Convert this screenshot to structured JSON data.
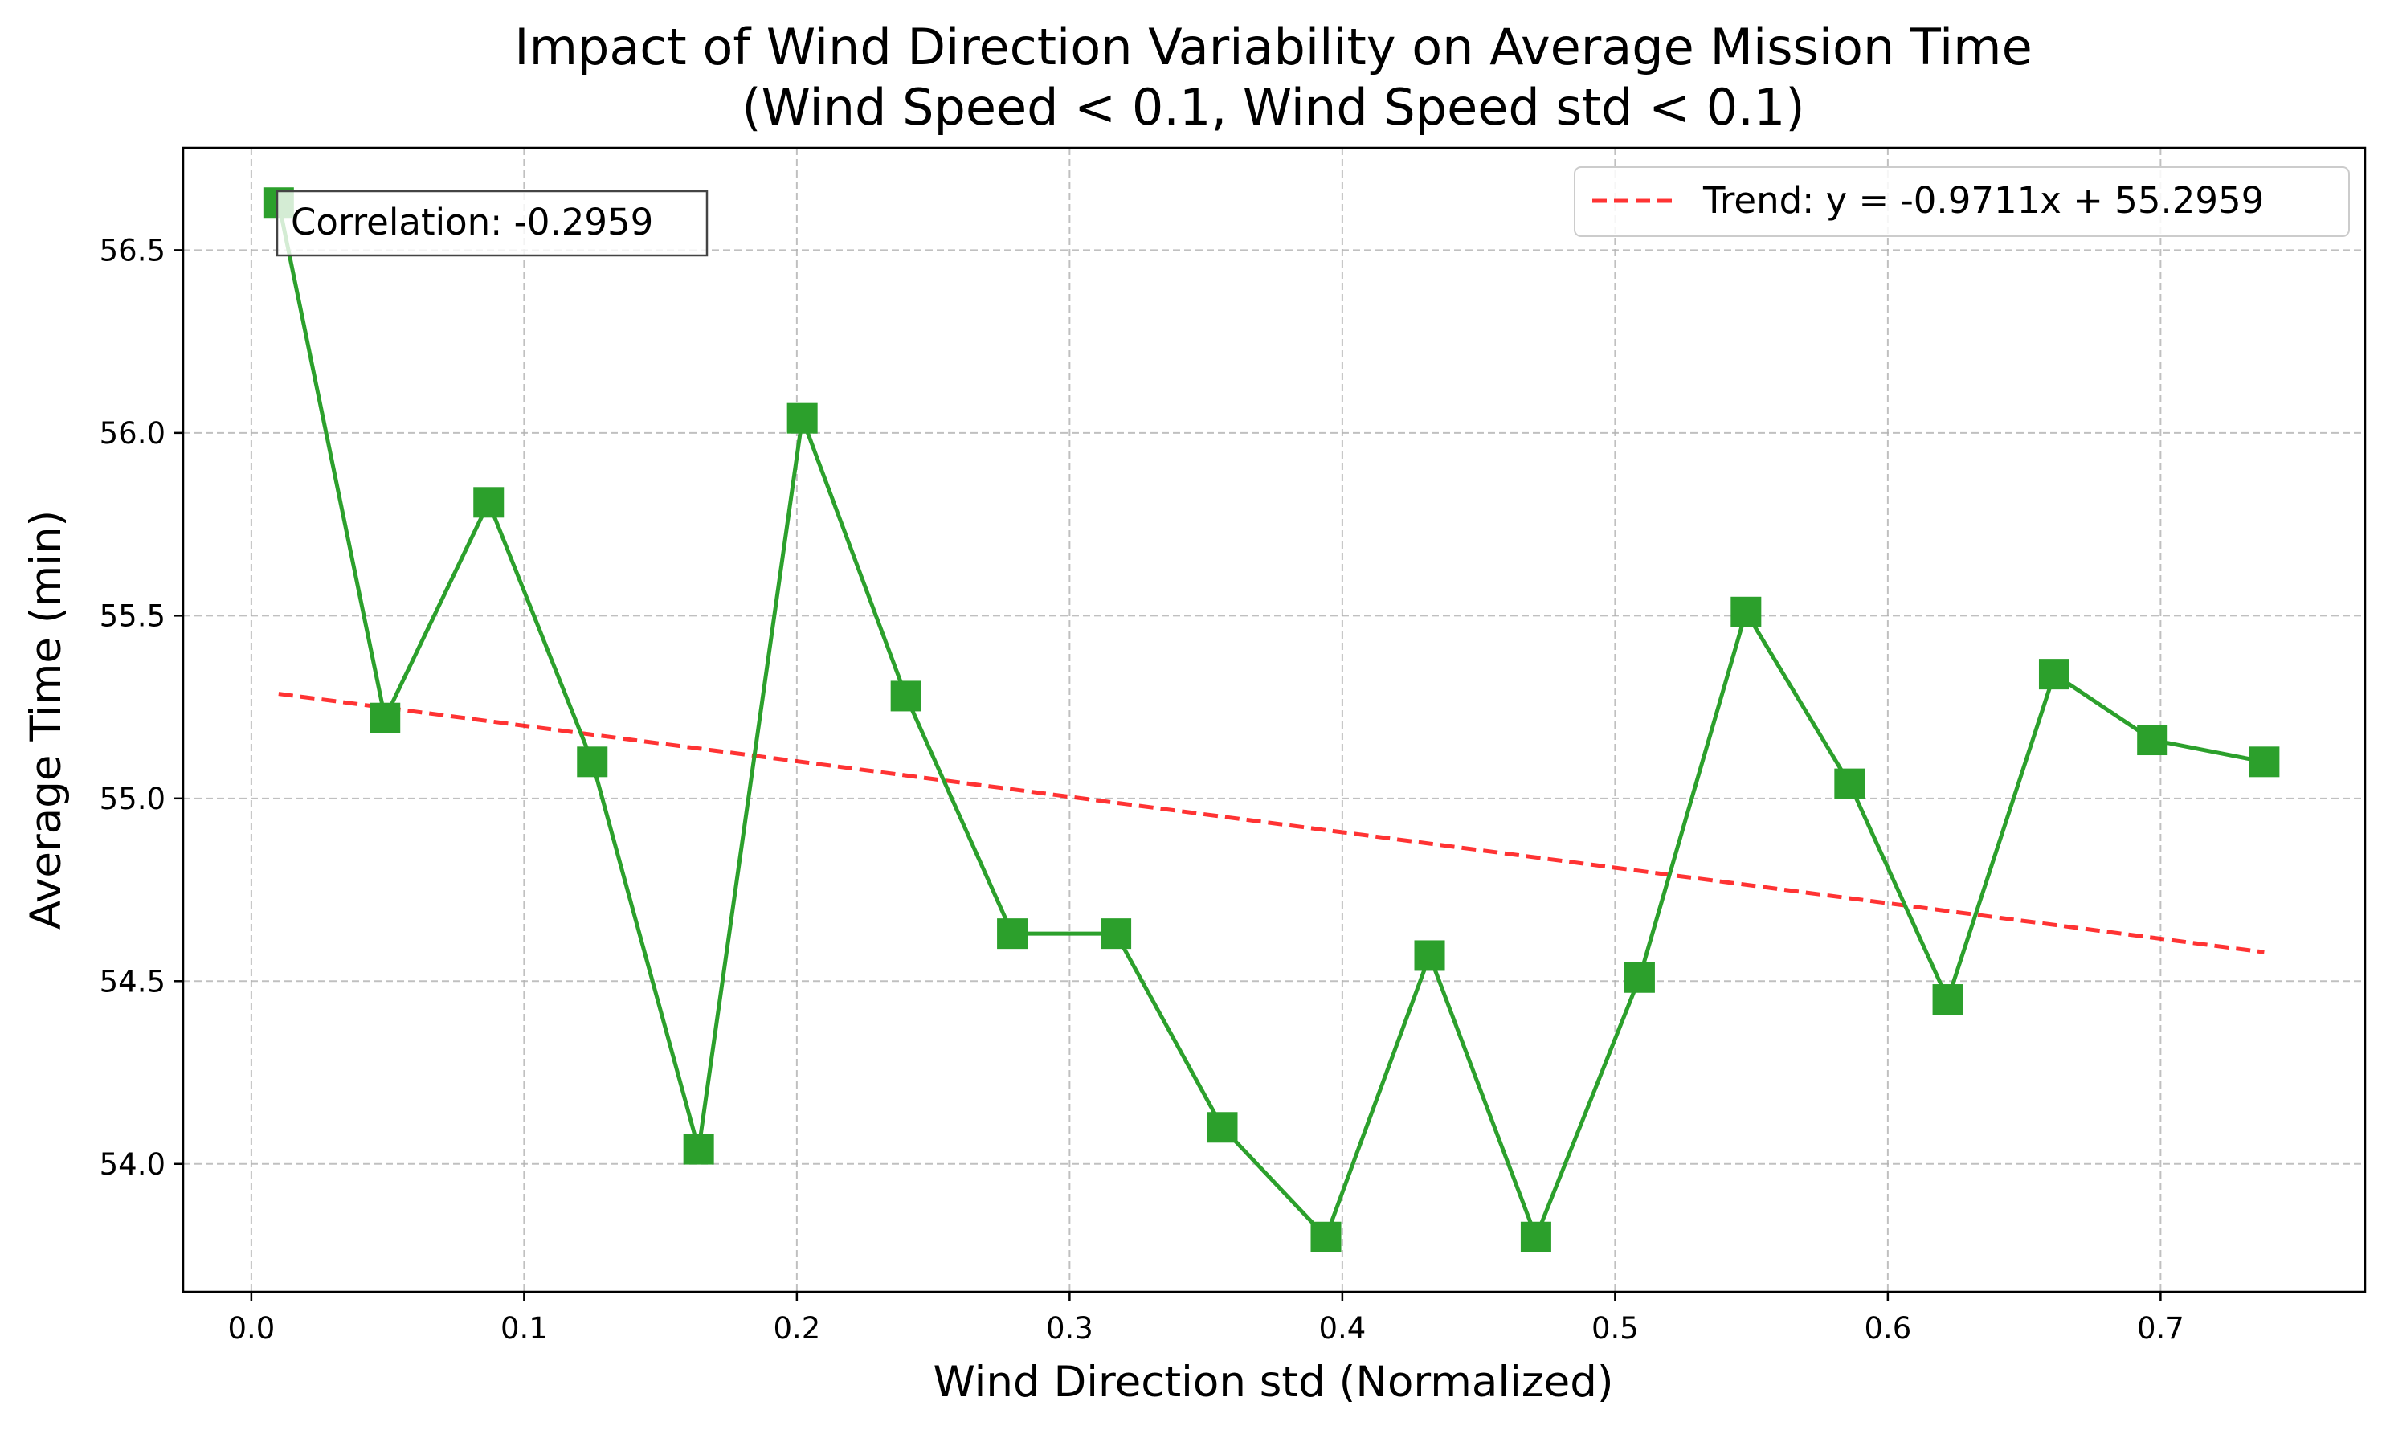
{
  "chart_data": {
    "type": "line",
    "title": "Impact of Wind Direction Variability on Average Mission Time",
    "subtitle": "(Wind Speed < 0.1, Wind Speed std < 0.1)",
    "xlabel": "Wind Direction std (Normalized)",
    "ylabel": "Average Time (min)",
    "xlim": [
      -0.025,
      0.775
    ],
    "ylim": [
      53.65,
      56.78
    ],
    "xticks": [
      "0.0",
      "0.1",
      "0.2",
      "0.3",
      "0.4",
      "0.5",
      "0.6",
      "0.7"
    ],
    "yticks": [
      "54.0",
      "54.5",
      "55.0",
      "55.5",
      "56.0",
      "56.5"
    ],
    "grid": true,
    "legend_position": "top-right",
    "series": [
      {
        "color": "#2ca02c",
        "marker": "square",
        "x": [
          0.01,
          0.049,
          0.087,
          0.125,
          0.164,
          0.202,
          0.24,
          0.279,
          0.317,
          0.356,
          0.394,
          0.432,
          0.471,
          0.509,
          0.548,
          0.586,
          0.622,
          0.661,
          0.697,
          0.738
        ],
        "y": [
          56.63,
          55.22,
          55.81,
          55.1,
          54.04,
          56.04,
          55.28,
          54.63,
          54.63,
          54.1,
          53.8,
          54.57,
          53.8,
          54.51,
          55.51,
          55.04,
          54.45,
          55.34,
          55.16,
          55.1
        ]
      }
    ],
    "trend": {
      "label": "Trend: y = -0.9711x + 55.2959",
      "color": "#ff0000",
      "slope": -0.9711,
      "intercept": 55.2959,
      "x_range": [
        0.01,
        0.738
      ]
    },
    "annotation": "Correlation: -0.2959"
  }
}
